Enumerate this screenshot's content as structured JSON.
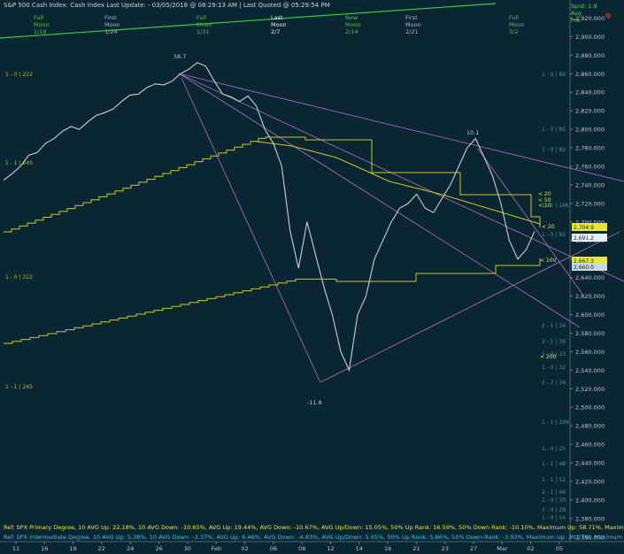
{
  "header": {
    "title": "S&P 500 Cash Index:  Cash Index  Last Update: - 03/05/2018 @ 08:29:13 AM | Last Quoted @ 05:29:54 PM",
    "right_labels": [
      "Sprd: 1.9",
      "Avg",
      "Pre"
    ]
  },
  "moon_labels": [
    {
      "phase": "Full",
      "word": "Moon",
      "date": "1/16",
      "color": "#58b858"
    },
    {
      "phase": "First",
      "word": "Moon",
      "date": "1/24",
      "color": "#a8b6be"
    },
    {
      "phase": "Full",
      "word": "Moon",
      "date": "1/31",
      "color": "#58b858"
    },
    {
      "phase": "Last",
      "word": "Moon",
      "date": "2/7",
      "color": "#e8eef2"
    },
    {
      "phase": "New",
      "word": "Moon",
      "date": "2/14",
      "color": "#58b858"
    },
    {
      "phase": "First",
      "word": "Moon",
      "date": "2/21",
      "color": "#a8b6be"
    },
    {
      "phase": "Full",
      "word": "Moon",
      "date": "3/2",
      "color": "#58b858"
    }
  ],
  "annotations": {
    "peak_value": "58.7",
    "trough_value": "-11.8",
    "second_peak_value": "10.1"
  },
  "right_tags": [
    {
      "label": "1 - 0 | 89",
      "color": "#4a8fa0"
    },
    {
      "label": "1 - 0 | 85",
      "color": "#4a8fa0"
    },
    {
      "label": "1 - 0 | 82",
      "color": "#4a8fa0"
    },
    {
      "label": "1 - 1 | 186",
      "color": "#4a8fa0"
    },
    {
      "label": "1 - 0 | 82",
      "color": "#4a8fa0"
    },
    {
      "label": "2 - 1 | 34",
      "color": "#4a8fa0"
    },
    {
      "label": "2 - 1 | 39",
      "color": "#4a8fa0"
    },
    {
      "label": "1 - 0 | 33",
      "color": "#4a8fa0"
    },
    {
      "label": "1 - 0 | 32",
      "color": "#4a8fa0"
    },
    {
      "label": "2 - 2 | 34",
      "color": "#4a8fa0"
    },
    {
      "label": "1 - 1 | 186",
      "color": "#4a8fa0"
    },
    {
      "label": "1 - 0 | 25",
      "color": "#4a8fa0"
    },
    {
      "label": "1 - 1 | 48",
      "color": "#4a8fa0"
    },
    {
      "label": "1 - 1 | 52",
      "color": "#4a8fa0"
    },
    {
      "label": "2 - 1 | 46",
      "color": "#4a8fa0"
    },
    {
      "label": "1 - 0 | 30",
      "color": "#4a8fa0"
    },
    {
      "label": "1 - 0 | 28",
      "color": "#4a8fa0"
    },
    {
      "label": "1 - 0 | 54",
      "color": "#4a8fa0"
    }
  ],
  "left_tags": [
    {
      "label": "1 - 0 | 222",
      "color": "#b8b838"
    },
    {
      "label": "1 - 1 | 245",
      "color": "#b8b838"
    },
    {
      "label": "1 - 0 | 222",
      "color": "#b8b838"
    },
    {
      "label": "1 - 1 | 245",
      "color": "#b8b838"
    }
  ],
  "ma_labels": [
    "< 20",
    "< 50",
    "< 10",
    "< 20",
    "< 100",
    "< 200"
  ],
  "price_tags": [
    {
      "label": "2,704.9",
      "fill": "#e8e830"
    },
    {
      "label": "2,691.2",
      "fill": "#e8eef2"
    },
    {
      "label": "2,667.3",
      "fill": "#e8e830"
    },
    {
      "label": "2,660.0",
      "fill": "#c9d7df"
    }
  ],
  "footer": {
    "line1": "Ref: SPX Primary Degree, 10 AVG Up: 22.18%, 10 AVG Down: -10.65%, AVG Up: 19.44%, AVG Down: -10.67%, AVG Up/Down: 15.05%, 50%  Up Rank: 16.59%, 50% Down Rank: -10.10%, Maximum Up: 58.71%, Maximum Do",
    "line2": "Ref: SPX Intermediate Degree, 10 AVG Up: 5.38%, 10 AVG Down: -3.37%, AVG Up: 6.46%, AVG Down: -4.83%, AVG Up/Down: 5.65%, 50%  Up Rank: 5.86%, 50% Down Rank: -3.93%, Maximum Up: 20.27%, Maximum Dc"
  },
  "colors": {
    "background": "#0a2632",
    "price": "#c9d0d4",
    "ma": "#c8c828",
    "trend": "#b070c0",
    "green_line": "#3cc83c",
    "footer1": "#e8e830",
    "footer2": "#30c8e8"
  },
  "chart_data": {
    "type": "line",
    "title": "S&P 500 Cash Index",
    "y_ticks": [
      "2,920.000",
      "2,900.000",
      "2,880.000",
      "2,860.000",
      "2,840.000",
      "2,820.000",
      "2,800.000",
      "2,780.000",
      "2,760.000",
      "2,740.000",
      "2,720.000",
      "2,700.000",
      "2,680.000",
      "2,660.000",
      "2,640.000",
      "2,620.000",
      "2,600.000",
      "2,580.000",
      "2,560.000",
      "2,540.000",
      "2,520.000",
      "2,500.000",
      "2,480.000",
      "2,460.000",
      "2,440.000",
      "2,420.000",
      "2,400.000",
      "2,380.000",
      "2,360.000"
    ],
    "ylim": [
      2355,
      2930
    ],
    "x_ticks": [
      "11",
      "16",
      "18",
      "22",
      "24",
      "26",
      "30",
      "Feb",
      "02",
      "06",
      "08",
      "12",
      "14",
      "16",
      "21",
      "23",
      "27",
      "Mar",
      "02",
      "05"
    ],
    "series": [
      {
        "values": [
          2745,
          2752,
          2760,
          2772,
          2775,
          2785,
          2790,
          2798,
          2803,
          2800,
          2808,
          2815,
          2818,
          2822,
          2830,
          2837,
          2838,
          2845,
          2849,
          2848,
          2852,
          2860,
          2865,
          2872,
          2868,
          2852,
          2838,
          2835,
          2830,
          2836,
          2825,
          2800,
          2785,
          2760,
          2690,
          2650,
          2700,
          2665,
          2630,
          2600,
          2560,
          2540,
          2600,
          2620,
          2660,
          2680,
          2700,
          2715,
          2720,
          2730,
          2715,
          2710,
          2725,
          2740,
          2760,
          2780,
          2790,
          2770,
          2750,
          2720,
          2680,
          2660,
          2670,
          2690
        ]
      }
    ]
  }
}
